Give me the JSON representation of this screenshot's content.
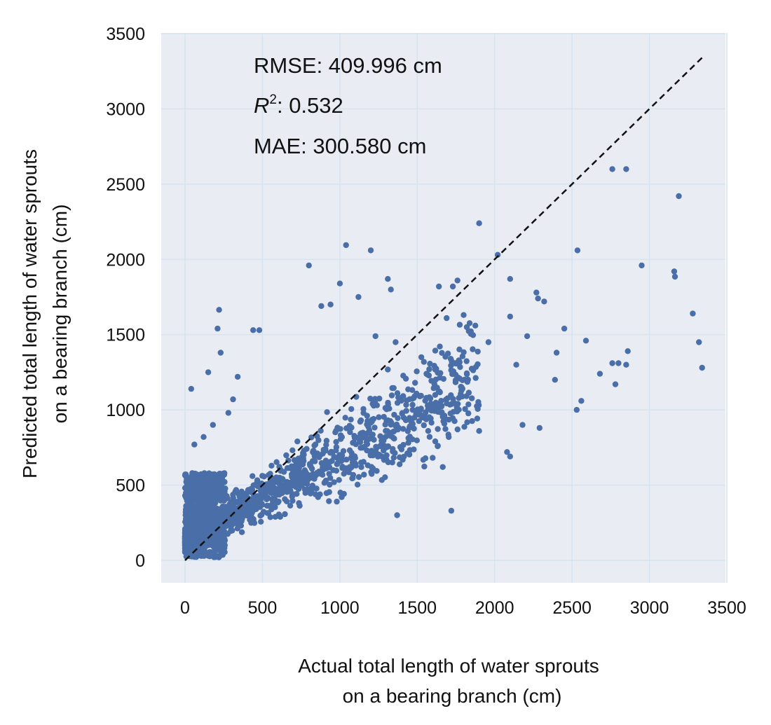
{
  "chart_data": {
    "type": "scatter",
    "title": "",
    "xlabel_lines": [
      "Actual total length of water sprouts",
      "on a bearing branch (cm)"
    ],
    "ylabel_lines": [
      "Predicted total length of water sprouts",
      "on a bearing branch (cm)"
    ],
    "xlim": [
      -150,
      3500
    ],
    "ylim": [
      -150,
      3500
    ],
    "x_ticks": [
      "0",
      "500",
      "1000",
      "1500",
      "2000",
      "2500",
      "3000",
      "3500"
    ],
    "y_ticks": [
      "0",
      "500",
      "1000",
      "1500",
      "2000",
      "2500",
      "3000",
      "3500"
    ],
    "grid": true,
    "background_color": "#e9ecf3",
    "grid_color": "#d6e4f0",
    "point_color": "#4a6fa8",
    "reference_line": {
      "style": "dashed",
      "color": "#111111",
      "from": [
        0,
        0
      ],
      "to": [
        3340,
        3340
      ]
    },
    "stats": {
      "rmse": "RMSE: 409.996 cm",
      "r2_symbol": "R",
      "r2_sup": "2",
      "r2_value": ": 0.532",
      "mae": "MAE: 300.580 cm"
    },
    "points": [
      [
        1900,
        2240
      ],
      [
        1040,
        2095
      ],
      [
        1200,
        2060
      ],
      [
        2535,
        2060
      ],
      [
        2020,
        2030
      ],
      [
        800,
        1960
      ],
      [
        2950,
        1960
      ],
      [
        3160,
        1920
      ],
      [
        3165,
        1885
      ],
      [
        1760,
        1860
      ],
      [
        1310,
        1870
      ],
      [
        2100,
        1870
      ],
      [
        1000,
        1840
      ],
      [
        1330,
        1800
      ],
      [
        1640,
        1820
      ],
      [
        1730,
        1820
      ],
      [
        940,
        1700
      ],
      [
        880,
        1690
      ],
      [
        1120,
        1750
      ],
      [
        2270,
        1780
      ],
      [
        220,
        1665
      ],
      [
        440,
        1530
      ],
      [
        480,
        1530
      ],
      [
        2280,
        1740
      ],
      [
        2320,
        1720
      ],
      [
        2590,
        1460
      ],
      [
        2760,
        1310
      ],
      [
        2800,
        1310
      ],
      [
        2850,
        1300
      ],
      [
        3280,
        1640
      ],
      [
        3320,
        1450
      ],
      [
        3340,
        1280
      ],
      [
        2780,
        1170
      ],
      [
        2560,
        1060
      ],
      [
        2530,
        1000
      ],
      [
        2290,
        880
      ],
      [
        2080,
        720
      ],
      [
        2100,
        690
      ],
      [
        1720,
        330
      ],
      [
        1370,
        300
      ],
      [
        3190,
        2420
      ],
      [
        2760,
        2600
      ],
      [
        2850,
        2600
      ],
      [
        2860,
        1390
      ],
      [
        2390,
        1200
      ],
      [
        2400,
        1380
      ],
      [
        2450,
        1540
      ],
      [
        2680,
        1240
      ],
      [
        2180,
        900
      ],
      [
        1900,
        860
      ],
      [
        40,
        1140
      ],
      [
        210,
        1540
      ],
      [
        230,
        1380
      ],
      [
        150,
        1250
      ],
      [
        310,
        1070
      ],
      [
        340,
        1220
      ],
      [
        280,
        980
      ],
      [
        180,
        900
      ],
      [
        120,
        820
      ],
      [
        60,
        770
      ],
      [
        1470,
        1000
      ],
      [
        1690,
        1610
      ],
      [
        1820,
        1550
      ],
      [
        1230,
        1490
      ],
      [
        1360,
        1450
      ],
      [
        1560,
        1240
      ],
      [
        1960,
        1450
      ],
      [
        2140,
        1300
      ],
      [
        2100,
        1620
      ],
      [
        2210,
        1490
      ]
    ]
  }
}
